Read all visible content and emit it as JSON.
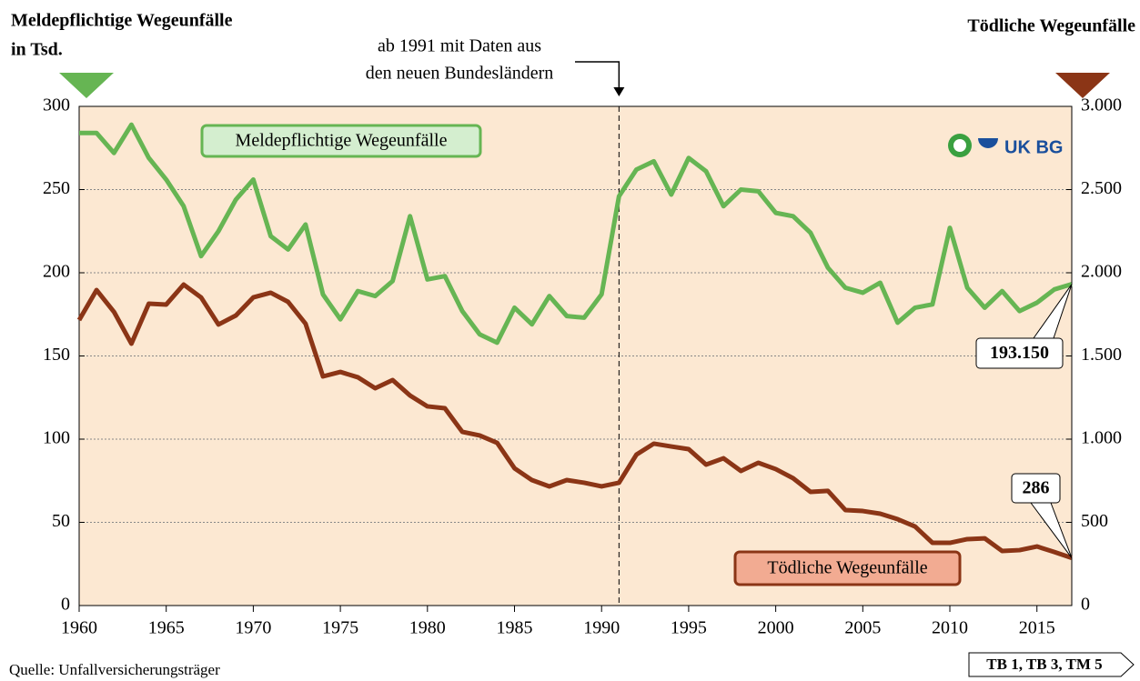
{
  "chart_data": {
    "type": "line",
    "y_title": [
      "Meldepflichtige Wegeunfälle",
      "in Tsd."
    ],
    "y2_title": "Tödliche Wegeunfälle",
    "source": "Quelle: Unfallversicherungsträger",
    "badge": "TB 1, TB 3, TM 5",
    "logo": "UK BG",
    "annotation": {
      "text": [
        "ab 1991 mit Daten aus",
        "den neuen Bundesländern"
      ],
      "x": 1991
    },
    "x": [
      1960,
      1961,
      1962,
      1963,
      1964,
      1965,
      1966,
      1967,
      1968,
      1969,
      1970,
      1971,
      1972,
      1973,
      1974,
      1975,
      1976,
      1977,
      1978,
      1979,
      1980,
      1981,
      1982,
      1983,
      1984,
      1985,
      1986,
      1987,
      1988,
      1989,
      1990,
      1991,
      1992,
      1993,
      1994,
      1995,
      1996,
      1997,
      1998,
      1999,
      2000,
      2001,
      2002,
      2003,
      2004,
      2005,
      2006,
      2007,
      2008,
      2009,
      2010,
      2011,
      2012,
      2013,
      2014,
      2015,
      2016,
      2017
    ],
    "xlim": [
      1960,
      2017
    ],
    "xticks": [
      1960,
      1965,
      1970,
      1975,
      1980,
      1985,
      1990,
      1995,
      2000,
      2005,
      2010,
      2015
    ],
    "ylim": [
      0,
      300
    ],
    "yticks": [
      0,
      50,
      100,
      150,
      200,
      250,
      300
    ],
    "y2lim": [
      0,
      3000
    ],
    "y2ticks": [
      0,
      500,
      {
        "value": 1000,
        "label": "1.000"
      },
      {
        "value": 1500,
        "label": "1.500"
      },
      {
        "value": 2000,
        "label": "2.000"
      },
      {
        "value": 2500,
        "label": "2.500"
      },
      {
        "value": 3000,
        "label": "3.000"
      }
    ],
    "grid": true,
    "series": [
      {
        "name": "Meldepflichtige Wegeunfälle",
        "color": "#66b553",
        "values": [
          284,
          284,
          272,
          289,
          269,
          256,
          240,
          210,
          225,
          244,
          256,
          222,
          214,
          229,
          187,
          172,
          189,
          186,
          195,
          234,
          196,
          198,
          177,
          163,
          158,
          179,
          169,
          186,
          174,
          173,
          187,
          246,
          262,
          267,
          247,
          269,
          261,
          240,
          250,
          249,
          236,
          234,
          224,
          203,
          191,
          188,
          194,
          170,
          179,
          181,
          227,
          191,
          179,
          189,
          177,
          182,
          190,
          193.15
        ],
        "value_labels": [
          null,
          null,
          null,
          null,
          null,
          null,
          null,
          null,
          null,
          null,
          null,
          null,
          null,
          null,
          null,
          null,
          null,
          null,
          null,
          null,
          null,
          null,
          null,
          null,
          null,
          null,
          null,
          null,
          null,
          null,
          null,
          null,
          null,
          null,
          null,
          null,
          null,
          null,
          null,
          null,
          null,
          null,
          null,
          null,
          null,
          null,
          null,
          null,
          null,
          null,
          null,
          null,
          null,
          null,
          null,
          null,
          null,
          "193.150"
        ]
      },
      {
        "name": "Tödliche Wegeunfälle",
        "color": "#8b3516",
        "axis": "y2",
        "values": [
          1716,
          1896,
          1765,
          1574,
          1814,
          1809,
          1929,
          1852,
          1689,
          1743,
          1852,
          1880,
          1825,
          1694,
          1377,
          1404,
          1372,
          1306,
          1355,
          1262,
          1197,
          1186,
          1044,
          1022,
          978,
          825,
          754,
          716,
          754,
          738,
          716,
          738,
          907,
          973,
          956,
          940,
          847,
          885,
          809,
          858,
          820,
          765,
          683,
          689,
          574,
          568,
          552,
          519,
          475,
          377,
          377,
          399,
          404,
          328,
          333,
          355,
          322,
          286
        ],
        "value_labels": [
          null,
          null,
          null,
          null,
          null,
          null,
          null,
          null,
          null,
          null,
          null,
          null,
          null,
          null,
          null,
          null,
          null,
          null,
          null,
          null,
          null,
          null,
          null,
          null,
          null,
          null,
          null,
          null,
          null,
          null,
          null,
          null,
          null,
          null,
          null,
          null,
          null,
          null,
          null,
          null,
          null,
          null,
          null,
          null,
          null,
          null,
          null,
          null,
          null,
          null,
          null,
          null,
          null,
          null,
          null,
          null,
          null,
          "286"
        ]
      }
    ]
  }
}
